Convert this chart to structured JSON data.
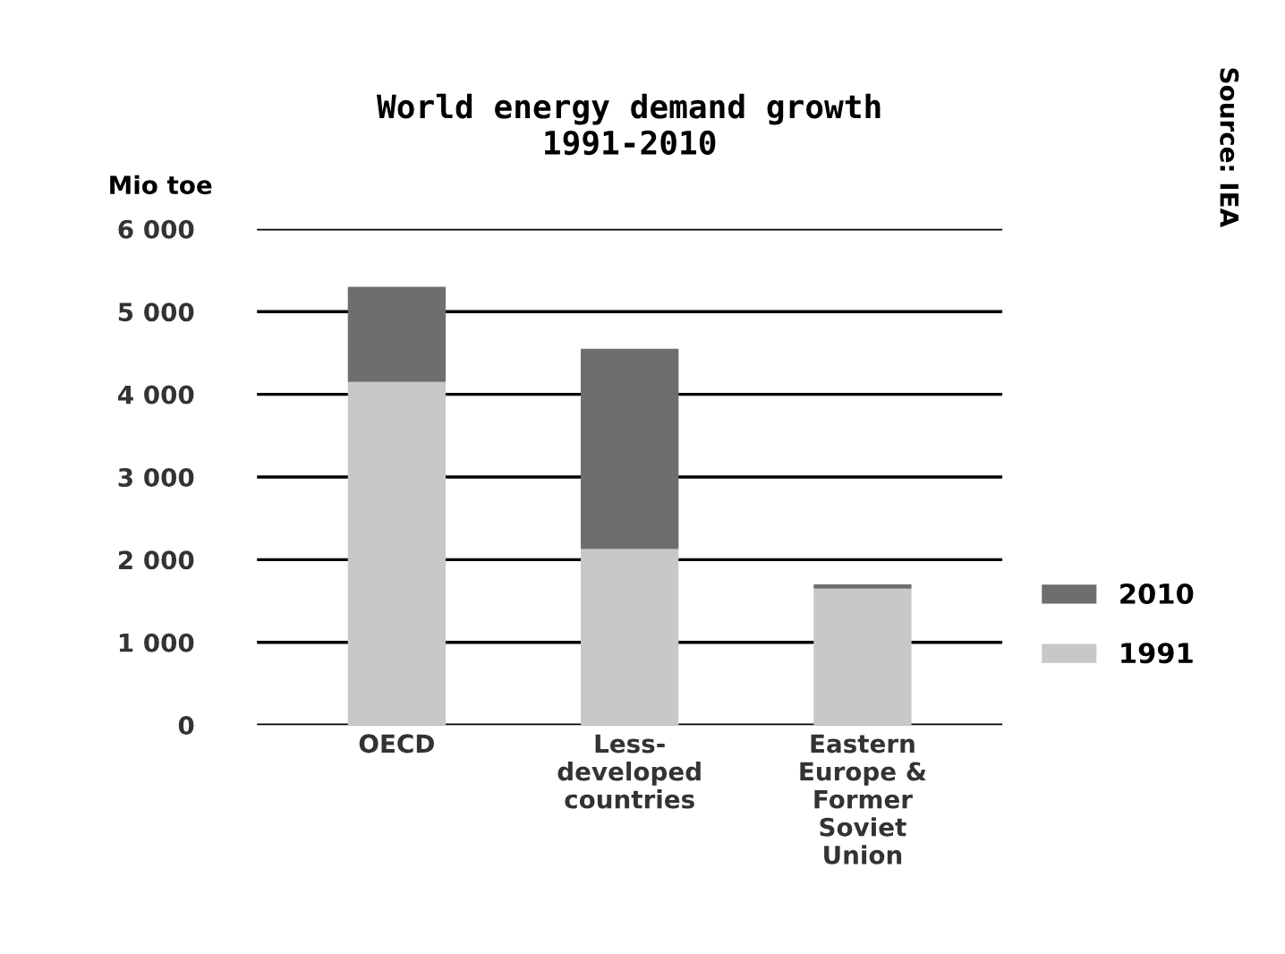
{
  "chart_data": {
    "type": "bar",
    "title": "World energy demand growth\n1991-2010",
    "ylabel": "Mio toe",
    "annotations": [
      "Source: IEA"
    ],
    "categories": [
      "OECD",
      "Less-\ndeveloped\ncountries",
      "Eastern\nEurope &\nFormer\nSoviet\nUnion"
    ],
    "stacked": true,
    "series": [
      {
        "name": "1991",
        "color": "#c8c8c8",
        "values": [
          4150,
          2130,
          1650
        ]
      },
      {
        "name": "2010",
        "color": "#6e6e6e",
        "values": [
          1150,
          2420,
          50
        ]
      }
    ],
    "ylim": [
      0,
      6000
    ],
    "yticks": [
      {
        "value": 0,
        "label": "0"
      },
      {
        "value": 1000,
        "label": "1 000"
      },
      {
        "value": 2000,
        "label": "2 000"
      },
      {
        "value": 3000,
        "label": "3 000"
      },
      {
        "value": 4000,
        "label": "4 000"
      },
      {
        "value": 5000,
        "label": "5 000"
      },
      {
        "value": 6000,
        "label": "6 000"
      }
    ],
    "grid": "y",
    "legend": "right"
  }
}
